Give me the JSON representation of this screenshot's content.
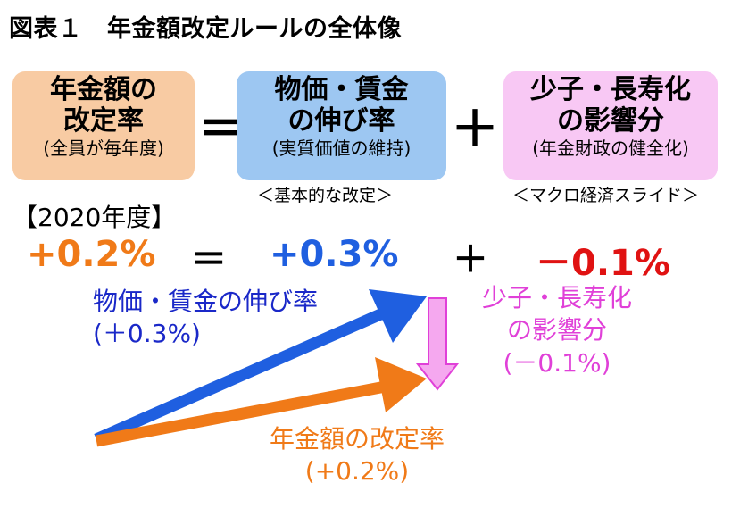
{
  "title": "図表１　年金額改定ルールの全体像",
  "formula": {
    "box1": {
      "line1": "年金額の",
      "line2": "改定率",
      "sub": "(全員が毎年度)"
    },
    "equals": "＝",
    "box2": {
      "line1": "物価・賃金",
      "line2": "の伸び率",
      "sub": "(実質価値の維持)",
      "caption": "＜基本的な改定＞"
    },
    "plus": "＋",
    "box3": {
      "line1": "少子・長寿化",
      "line2": "の影響分",
      "sub": "(年金財政の健全化)",
      "caption": "＜マクロ経済スライド＞"
    }
  },
  "year_label": "【2020年度】",
  "values": {
    "pension": "+0.2%",
    "equals": "＝",
    "price_wage": "+0.3%",
    "plus": "＋",
    "demographic": "－0.1%"
  },
  "arrow_labels": {
    "price_wage": {
      "line1": "物価・賃金の伸び率",
      "line2": "(＋0.3%)"
    },
    "demographic": {
      "line1": "少子・長寿化",
      "line2": "の影響分",
      "line3": "(－0.1%)"
    },
    "pension": {
      "line1": "年金額の改定率",
      "line2": "(+0.2%)"
    }
  },
  "colors": {
    "orange": "#f07a18",
    "blue": "#1f5fe0",
    "label_blue": "#1a28c8",
    "red": "#e01212",
    "magenta": "#e040d8",
    "pink_arrow": "#f5a8ef",
    "box_orange": "#f8cba3",
    "box_blue": "#9dc7f2",
    "box_pink": "#f8c8f4"
  }
}
